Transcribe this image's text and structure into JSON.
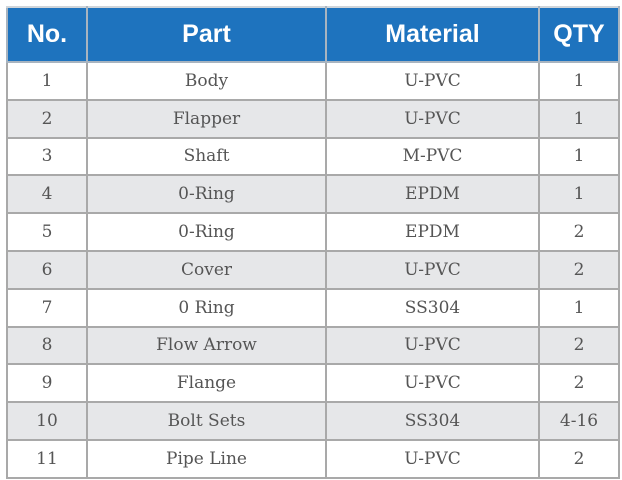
{
  "colors": {
    "header_bg": "#1e73be",
    "header_text": "#ffffff",
    "row_alt_bg": "#e6e7e9",
    "row_bg": "#ffffff",
    "border": "#a9a9a9",
    "cell_text": "#555555"
  },
  "table": {
    "headers": [
      "No.",
      "Part",
      "Material",
      "QTY"
    ],
    "rows": [
      {
        "no": "1",
        "part": "Body",
        "material": "U-PVC",
        "qty": "1"
      },
      {
        "no": "2",
        "part": "Flapper",
        "material": "U-PVC",
        "qty": "1"
      },
      {
        "no": "3",
        "part": "Shaft",
        "material": "M-PVC",
        "qty": "1"
      },
      {
        "no": "4",
        "part": "0-Ring",
        "material": "EPDM",
        "qty": "1"
      },
      {
        "no": "5",
        "part": "0-Ring",
        "material": "EPDM",
        "qty": "2"
      },
      {
        "no": "6",
        "part": "Cover",
        "material": "U-PVC",
        "qty": "2"
      },
      {
        "no": "7",
        "part": "0 Ring",
        "material": "SS304",
        "qty": "1"
      },
      {
        "no": "8",
        "part": "Flow Arrow",
        "material": "U-PVC",
        "qty": "2"
      },
      {
        "no": "9",
        "part": "Flange",
        "material": "U-PVC",
        "qty": "2"
      },
      {
        "no": "10",
        "part": "Bolt Sets",
        "material": "SS304",
        "qty": "4-16"
      },
      {
        "no": "11",
        "part": "Pipe Line",
        "material": "U-PVC",
        "qty": "2"
      }
    ]
  }
}
